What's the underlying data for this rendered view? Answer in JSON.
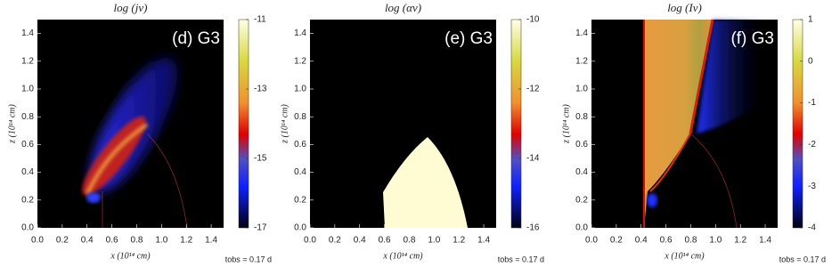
{
  "chart_data": [
    {
      "type": "heatmap",
      "title": "log (jν)",
      "annotation": "(d) G3",
      "xlabel": "x (10¹⁴ cm)",
      "ylabel": "z (10¹⁴ cm)",
      "time_label": "tobs = 0.17 d",
      "xlim": [
        0,
        1.5
      ],
      "ylim": [
        0,
        1.5
      ],
      "xticks": [
        {
          "value": 0,
          "label": "0.0"
        },
        0.2,
        0.4,
        0.6,
        0.8,
        {
          "value": 1,
          "label": "1.0"
        },
        1.2,
        1.4
      ],
      "yticks": [
        {
          "value": 0,
          "label": "0.0"
        },
        0.2,
        0.4,
        0.6,
        0.8,
        {
          "value": 1,
          "label": "1.0"
        },
        1.2,
        1.4
      ],
      "clim": [
        -17,
        -11
      ],
      "cticks": [
        -17,
        -15,
        -13,
        -11
      ]
    },
    {
      "type": "heatmap",
      "title": "log (αν)",
      "annotation": "(e) G3",
      "xlabel": "x (10¹⁴ cm)",
      "ylabel": "z (10¹⁴ cm)",
      "time_label": "tobs = 0.17 d",
      "xlim": [
        0,
        1.5
      ],
      "ylim": [
        0,
        1.5
      ],
      "xticks": [
        {
          "value": 0,
          "label": "0.0"
        },
        0.2,
        0.4,
        0.6,
        0.8,
        {
          "value": 1,
          "label": "1.0"
        },
        1.2,
        1.4
      ],
      "yticks": [
        {
          "value": 0,
          "label": "0.0"
        },
        0.2,
        0.4,
        0.6,
        0.8,
        {
          "value": 1,
          "label": "1.0"
        },
        1.2,
        1.4
      ],
      "clim": [
        -16,
        -10
      ],
      "cticks": [
        -16,
        -14,
        -12,
        -10
      ]
    },
    {
      "type": "heatmap",
      "title": "log (Iν)",
      "annotation": "(f) G3",
      "xlabel": "x (10¹⁴ cm)",
      "ylabel": "z (10¹⁴ cm)",
      "time_label": "tobs = 0.17 d",
      "xlim": [
        0,
        1.5
      ],
      "ylim": [
        0,
        1.5
      ],
      "xticks": [
        {
          "value": 0,
          "label": "0.0"
        },
        0.2,
        0.4,
        0.6,
        0.8,
        {
          "value": 1,
          "label": "1.0"
        },
        1.2,
        1.4
      ],
      "yticks": [
        {
          "value": 0,
          "label": "0.0"
        },
        0.2,
        0.4,
        0.6,
        0.8,
        {
          "value": 1,
          "label": "1.0"
        },
        1.2,
        1.4
      ],
      "clim": [
        -4,
        1
      ],
      "cticks": [
        -4,
        -3,
        -2,
        -1,
        0,
        1
      ]
    }
  ]
}
